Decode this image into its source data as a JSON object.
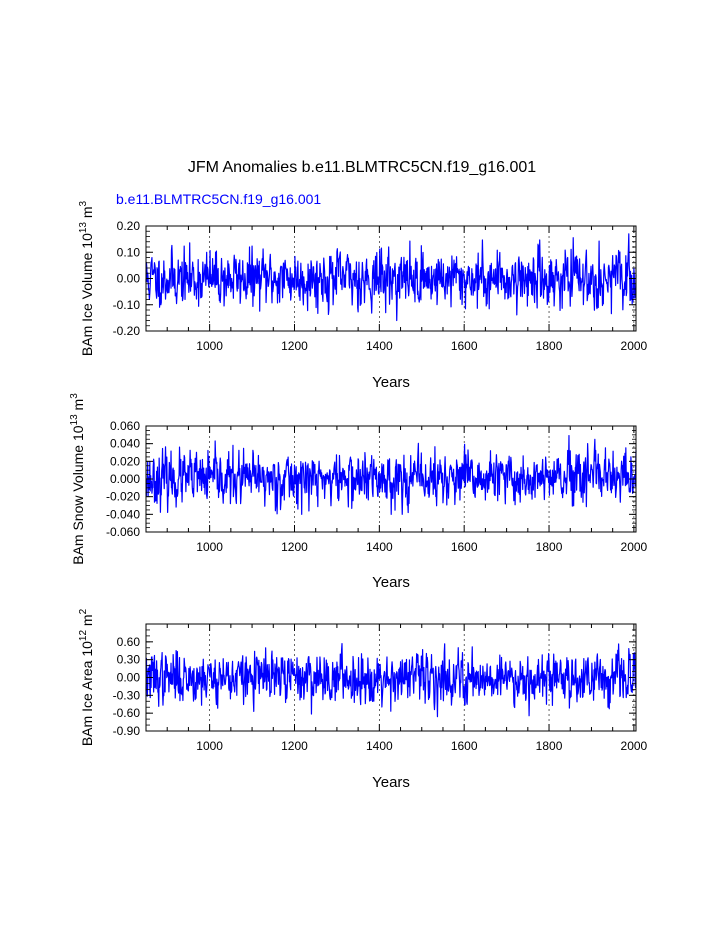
{
  "title": "JFM Anomalies b.e11.BLMTRC5CN.f19_g16.001",
  "series_label": "b.e11.BLMTRC5CN.f19_g16.001",
  "colors": {
    "line": "#0000ff",
    "text": "#000000",
    "grid": "#000000"
  },
  "chart_data": [
    {
      "type": "line",
      "name": "ice-volume",
      "ylabel": {
        "main": "BAm Ice Volume 10",
        "exp": "13",
        "unit": " m",
        "unit_exp": "3"
      },
      "xlabel": "Years",
      "xlim": [
        850,
        2005
      ],
      "ylim": [
        -0.2,
        0.2
      ],
      "xticks": [
        1000,
        1200,
        1400,
        1600,
        1800,
        2000
      ],
      "xtick_labels": [
        "1000",
        "1200",
        "1400",
        "1600",
        "1800",
        "2000"
      ],
      "yticks": [
        -0.2,
        -0.1,
        0.0,
        0.1,
        0.2
      ],
      "ytick_labels": [
        "-0.20",
        "-0.10",
        "0.00",
        "0.10",
        "0.20"
      ],
      "ytick_minor_step": 0.02,
      "grid": "vertical-dashed-at-xticks",
      "series": [
        {
          "name": "b.e11.BLMTRC5CN.f19_g16.001",
          "x_start": 850,
          "x_end": 2005,
          "std": 0.05,
          "range": [
            -0.16,
            0.17
          ],
          "seed": 11
        }
      ]
    },
    {
      "type": "line",
      "name": "snow-volume",
      "ylabel": {
        "main": "BAm Snow Volume 10",
        "exp": "13",
        "unit": " m",
        "unit_exp": "3"
      },
      "xlabel": "Years",
      "xlim": [
        850,
        2005
      ],
      "ylim": [
        -0.06,
        0.06
      ],
      "xticks": [
        1000,
        1200,
        1400,
        1600,
        1800,
        2000
      ],
      "xtick_labels": [
        "1000",
        "1200",
        "1400",
        "1600",
        "1800",
        "2000"
      ],
      "yticks": [
        -0.06,
        -0.04,
        -0.02,
        0.0,
        0.02,
        0.04,
        0.06
      ],
      "ytick_labels": [
        "-0.060",
        "-0.040",
        "-0.020",
        "0.000",
        "0.020",
        "0.040",
        "0.060"
      ],
      "ytick_minor_step": 0.005,
      "grid": "vertical-dashed-at-xticks",
      "series": [
        {
          "name": "b.e11.BLMTRC5CN.f19_g16.001",
          "x_start": 850,
          "x_end": 2005,
          "std": 0.014,
          "range": [
            -0.04,
            0.05
          ],
          "seed": 23
        }
      ]
    },
    {
      "type": "line",
      "name": "ice-area",
      "ylabel": {
        "main": "BAm Ice Area 10",
        "exp": "12",
        "unit": " m",
        "unit_exp": "2"
      },
      "xlabel": "Years",
      "xlim": [
        850,
        2005
      ],
      "ylim": [
        -0.9,
        0.9
      ],
      "xticks": [
        1000,
        1200,
        1400,
        1600,
        1800,
        2000
      ],
      "xtick_labels": [
        "1000",
        "1200",
        "1400",
        "1600",
        "1800",
        "2000"
      ],
      "yticks": [
        -0.9,
        -0.6,
        -0.3,
        0.0,
        0.3,
        0.6
      ],
      "ytick_labels": [
        "-0.90",
        "-0.60",
        "-0.30",
        "0.00",
        "0.30",
        "0.60"
      ],
      "ytick_minor_step": 0.1,
      "grid": "vertical-dashed-at-xticks",
      "series": [
        {
          "name": "b.e11.BLMTRC5CN.f19_g16.001",
          "x_start": 850,
          "x_end": 2005,
          "std": 0.2,
          "range": [
            -0.72,
            0.66
          ],
          "seed": 37
        }
      ]
    }
  ]
}
